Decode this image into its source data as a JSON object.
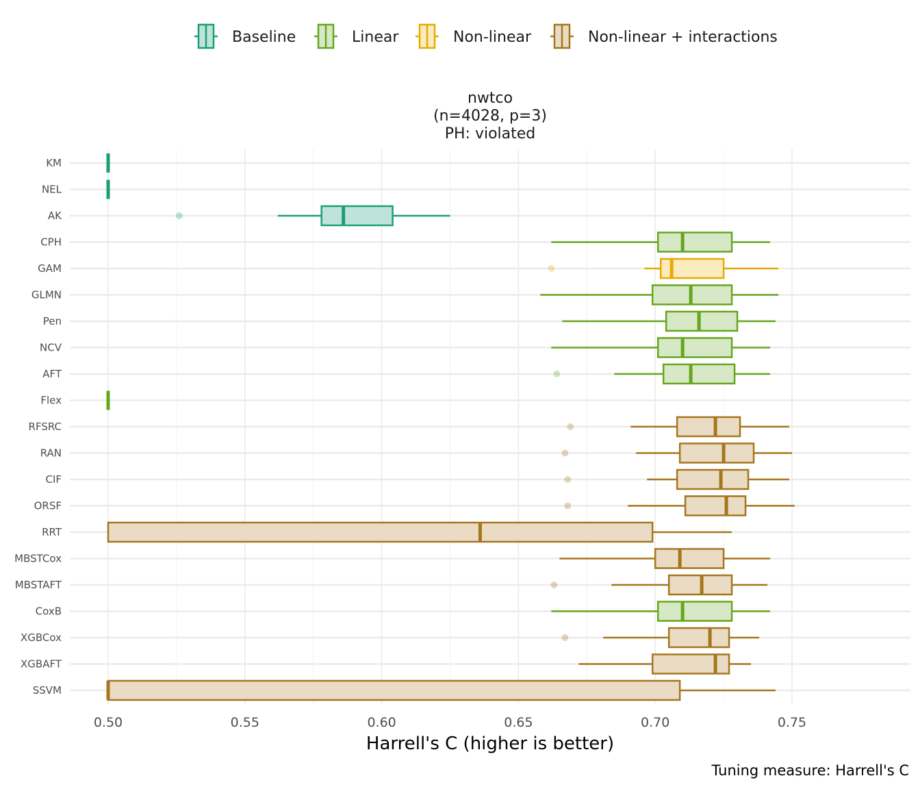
{
  "legend": {
    "items": [
      {
        "label": "Baseline",
        "stroke": "#1B9E77",
        "fill": "#BFE3D8"
      },
      {
        "label": "Linear",
        "stroke": "#66A61E",
        "fill": "#D6E8C5"
      },
      {
        "label": "Non-linear",
        "stroke": "#E6AB02",
        "fill": "#FBEBBD"
      },
      {
        "label": "Non-linear + interactions",
        "stroke": "#A6761D",
        "fill": "#E9DBC4"
      }
    ],
    "position": "top"
  },
  "facet": {
    "title_lines": [
      "nwtco",
      "(n=4028, p=3)",
      "PH: violated"
    ]
  },
  "caption": "Tuning measure: Harrell's C",
  "chart_data": {
    "type": "boxplot",
    "orientation": "horizontal",
    "xlabel": "Harrell's C (higher is better)",
    "ylabel": "",
    "xlim": [
      0.487,
      0.765
    ],
    "xticks": [
      0.5,
      0.55,
      0.6,
      0.65,
      0.7,
      0.75
    ],
    "xtick_labels": [
      "0.50",
      "0.55",
      "0.60",
      "0.65",
      "0.70",
      "0.75"
    ],
    "grid": true,
    "groups": [
      "Baseline",
      "Linear",
      "Non-linear",
      "Non-linear + interactions"
    ],
    "series": [
      {
        "name": "KM",
        "group": "Baseline",
        "min": 0.5,
        "q1": 0.5,
        "median": 0.5,
        "q3": 0.5,
        "max": 0.5,
        "outliers": []
      },
      {
        "name": "NEL",
        "group": "Baseline",
        "min": 0.5,
        "q1": 0.5,
        "median": 0.5,
        "q3": 0.5,
        "max": 0.5,
        "outliers": []
      },
      {
        "name": "AK",
        "group": "Baseline",
        "min": 0.562,
        "q1": 0.578,
        "median": 0.586,
        "q3": 0.604,
        "max": 0.625,
        "outliers": [
          0.526
        ]
      },
      {
        "name": "CPH",
        "group": "Linear",
        "min": 0.662,
        "q1": 0.701,
        "median": 0.71,
        "q3": 0.728,
        "max": 0.742,
        "outliers": []
      },
      {
        "name": "GAM",
        "group": "Non-linear",
        "min": 0.696,
        "q1": 0.702,
        "median": 0.706,
        "q3": 0.725,
        "max": 0.745,
        "outliers": [
          0.662
        ]
      },
      {
        "name": "GLMN",
        "group": "Linear",
        "min": 0.658,
        "q1": 0.699,
        "median": 0.713,
        "q3": 0.728,
        "max": 0.745,
        "outliers": []
      },
      {
        "name": "Pen",
        "group": "Linear",
        "min": 0.666,
        "q1": 0.704,
        "median": 0.716,
        "q3": 0.73,
        "max": 0.744,
        "outliers": []
      },
      {
        "name": "NCV",
        "group": "Linear",
        "min": 0.662,
        "q1": 0.701,
        "median": 0.71,
        "q3": 0.728,
        "max": 0.742,
        "outliers": []
      },
      {
        "name": "AFT",
        "group": "Linear",
        "min": 0.685,
        "q1": 0.703,
        "median": 0.713,
        "q3": 0.729,
        "max": 0.742,
        "outliers": [
          0.664
        ]
      },
      {
        "name": "Flex",
        "group": "Linear",
        "min": 0.5,
        "q1": 0.5,
        "median": 0.5,
        "q3": 0.5,
        "max": 0.5,
        "outliers": []
      },
      {
        "name": "RFSRC",
        "group": "Non-linear + interactions",
        "min": 0.691,
        "q1": 0.708,
        "median": 0.722,
        "q3": 0.731,
        "max": 0.749,
        "outliers": [
          0.669
        ]
      },
      {
        "name": "RAN",
        "group": "Non-linear + interactions",
        "min": 0.693,
        "q1": 0.709,
        "median": 0.725,
        "q3": 0.736,
        "max": 0.75,
        "outliers": [
          0.667
        ]
      },
      {
        "name": "CIF",
        "group": "Non-linear + interactions",
        "min": 0.697,
        "q1": 0.708,
        "median": 0.724,
        "q3": 0.734,
        "max": 0.749,
        "outliers": [
          0.668
        ]
      },
      {
        "name": "ORSF",
        "group": "Non-linear + interactions",
        "min": 0.69,
        "q1": 0.711,
        "median": 0.726,
        "q3": 0.733,
        "max": 0.751,
        "outliers": [
          0.668
        ]
      },
      {
        "name": "RRT",
        "group": "Non-linear + interactions",
        "min": 0.5,
        "q1": 0.5,
        "median": 0.636,
        "q3": 0.699,
        "max": 0.728,
        "outliers": []
      },
      {
        "name": "MBSTCox",
        "group": "Non-linear + interactions",
        "min": 0.665,
        "q1": 0.7,
        "median": 0.709,
        "q3": 0.725,
        "max": 0.742,
        "outliers": []
      },
      {
        "name": "MBSTAFT",
        "group": "Non-linear + interactions",
        "min": 0.684,
        "q1": 0.705,
        "median": 0.717,
        "q3": 0.728,
        "max": 0.741,
        "outliers": [
          0.663
        ]
      },
      {
        "name": "CoxB",
        "group": "Linear",
        "min": 0.662,
        "q1": 0.701,
        "median": 0.71,
        "q3": 0.728,
        "max": 0.742,
        "outliers": []
      },
      {
        "name": "XGBCox",
        "group": "Non-linear + interactions",
        "min": 0.681,
        "q1": 0.705,
        "median": 0.72,
        "q3": 0.727,
        "max": 0.738,
        "outliers": [
          0.667
        ]
      },
      {
        "name": "XGBAFT",
        "group": "Non-linear + interactions",
        "min": 0.672,
        "q1": 0.699,
        "median": 0.722,
        "q3": 0.727,
        "max": 0.735,
        "outliers": []
      },
      {
        "name": "SSVM",
        "group": "Non-linear + interactions",
        "min": 0.5,
        "q1": 0.5,
        "median": 0.5,
        "q3": 0.709,
        "max": 0.744,
        "outliers": []
      }
    ]
  }
}
